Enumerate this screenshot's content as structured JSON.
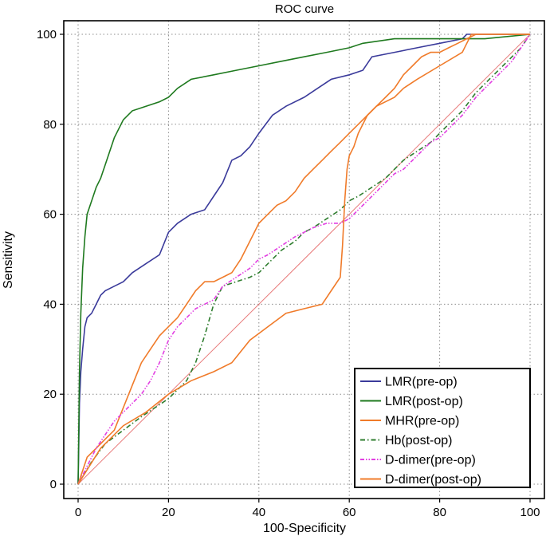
{
  "chart_data": {
    "type": "line",
    "title": "ROC curve",
    "xlabel": "100-Specificity",
    "ylabel": "Sensitivity",
    "xlim": [
      0,
      100
    ],
    "ylim": [
      0,
      100
    ],
    "xticks": [
      "0",
      "20",
      "40",
      "60",
      "80",
      "100"
    ],
    "yticks": [
      "0",
      "20",
      "40",
      "60",
      "80",
      "100"
    ],
    "grid": true,
    "legend_position": "bottom-right",
    "reference_line": {
      "x": [
        0,
        100
      ],
      "y": [
        0,
        100
      ],
      "color": "#e87a7a"
    },
    "series": [
      {
        "name": "LMR(pre-op)",
        "color": "#3b3b9b",
        "dash": "solid",
        "x": [
          0,
          0.3,
          0.6,
          1,
          1.5,
          2,
          3,
          4,
          5,
          6,
          8,
          10,
          12,
          15,
          18,
          20,
          22,
          25,
          28,
          30,
          32,
          34,
          36,
          38,
          40,
          43,
          46,
          50,
          53,
          56,
          60,
          63,
          65,
          70,
          75,
          80,
          85,
          86,
          90,
          100
        ],
        "y": [
          0,
          18,
          25,
          30,
          35,
          37,
          38,
          40,
          42,
          43,
          44,
          45,
          47,
          49,
          51,
          56,
          58,
          60,
          61,
          64,
          67,
          72,
          73,
          75,
          78,
          82,
          84,
          86,
          88,
          90,
          91,
          92,
          95,
          96,
          97,
          98,
          99,
          100,
          100,
          100
        ]
      },
      {
        "name": "LMR(post-op)",
        "color": "#1f7a1f",
        "dash": "solid",
        "x": [
          0,
          0.3,
          0.6,
          1,
          1.5,
          2,
          3,
          4,
          5,
          6,
          7,
          8,
          10,
          12,
          15,
          18,
          20,
          22,
          25,
          30,
          35,
          40,
          45,
          50,
          55,
          60,
          63,
          70,
          80,
          90,
          100
        ],
        "y": [
          0,
          25,
          38,
          48,
          55,
          60,
          63,
          66,
          68,
          71,
          74,
          77,
          81,
          83,
          84,
          85,
          86,
          88,
          90,
          91,
          92,
          93,
          94,
          95,
          96,
          97,
          98,
          99,
          99,
          99,
          100
        ]
      },
      {
        "name": "MHR(pre-op)",
        "color": "#f07b2a",
        "dash": "solid",
        "x": [
          0,
          2,
          4,
          6,
          8,
          10,
          12,
          14,
          16,
          18,
          20,
          22,
          24,
          26,
          28,
          30,
          32,
          34,
          36,
          38,
          40,
          42,
          44,
          46,
          48,
          50,
          52,
          54,
          56,
          58,
          60,
          62,
          64,
          66,
          68,
          70,
          72,
          74,
          76,
          78,
          80,
          82,
          84,
          86,
          88,
          90,
          94,
          98,
          100
        ],
        "y": [
          0,
          6,
          8,
          10,
          12,
          17,
          22,
          27,
          30,
          33,
          35,
          37,
          40,
          43,
          45,
          45,
          46,
          47,
          50,
          54,
          58,
          60,
          62,
          63,
          65,
          68,
          70,
          72,
          74,
          76,
          78,
          80,
          82,
          84,
          86,
          88,
          91,
          93,
          95,
          96,
          96,
          97,
          98,
          99,
          100,
          100,
          100,
          100,
          100
        ]
      },
      {
        "name": "Hb(post-op)",
        "color": "#2e7d2e",
        "dash": "6 3 1.5 3",
        "x": [
          0,
          3,
          6,
          10,
          14,
          17,
          20,
          22,
          24,
          26,
          28,
          30,
          32,
          35,
          38,
          40,
          42,
          45,
          48,
          50,
          52,
          55,
          58,
          60,
          62,
          65,
          68,
          70,
          72,
          75,
          78,
          80,
          82,
          85,
          88,
          90,
          93,
          96,
          98,
          100
        ],
        "y": [
          0,
          5,
          9,
          12,
          15,
          17,
          19,
          21,
          23,
          27,
          33,
          40,
          44,
          45,
          46,
          47,
          49,
          52,
          54,
          56,
          57,
          59,
          61,
          63,
          64,
          66,
          68,
          70,
          72,
          74,
          76,
          78,
          80,
          83,
          87,
          89,
          92,
          95,
          97,
          100
        ]
      },
      {
        "name": "D-dimer(pre-op)",
        "color": "#e23fe2",
        "dash": "5 2 1.5 2 1.5 2",
        "x": [
          0,
          2,
          4,
          6,
          8,
          10,
          12,
          14,
          16,
          18,
          20,
          22,
          24,
          26,
          28,
          30,
          32,
          35,
          38,
          40,
          42,
          45,
          48,
          50,
          52,
          55,
          58,
          60,
          62,
          64,
          66,
          68,
          70,
          72,
          75,
          78,
          80,
          82,
          85,
          88,
          90,
          93,
          96,
          100
        ],
        "y": [
          0,
          4,
          8,
          11,
          14,
          16,
          18,
          20,
          23,
          27,
          32,
          35,
          37,
          39,
          40,
          41,
          44,
          46,
          48,
          50,
          51,
          53,
          55,
          56,
          57,
          58,
          58,
          59,
          61,
          63,
          65,
          67,
          69,
          70,
          73,
          76,
          77,
          79,
          82,
          86,
          88,
          91,
          94,
          100
        ]
      },
      {
        "name": "D-dimer(post-op)",
        "color": "#f07b2a",
        "dash": "solid",
        "x": [
          0,
          5,
          10,
          15,
          20,
          25,
          30,
          34,
          38,
          42,
          46,
          50,
          54,
          56,
          58,
          58.5,
          59,
          59.5,
          60,
          61,
          62,
          64,
          66,
          70,
          72,
          75,
          80,
          85,
          87,
          90,
          95,
          100
        ],
        "y": [
          0,
          8,
          13,
          16,
          20,
          23,
          25,
          27,
          32,
          35,
          38,
          39,
          40,
          43,
          46,
          53,
          63,
          70,
          73,
          75,
          78,
          82,
          84,
          86,
          88,
          90,
          93,
          96,
          100,
          100,
          100,
          100
        ]
      }
    ]
  }
}
